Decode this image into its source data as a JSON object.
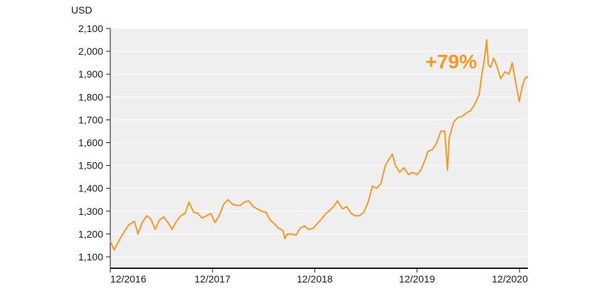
{
  "chart_data": {
    "type": "line",
    "ylabel": "USD",
    "ylim": [
      1050,
      2100
    ],
    "y_ticks": [
      "2,100",
      "2,000",
      "1,900",
      "1,800",
      "1,700",
      "1,600",
      "1,500",
      "1,400",
      "1,300",
      "1,200",
      "1,100"
    ],
    "y_tick_values": [
      2100,
      2000,
      1900,
      1800,
      1700,
      1600,
      1500,
      1400,
      1300,
      1200,
      1100
    ],
    "x_ticks": [
      "12/2016",
      "12/2017",
      "12/2018",
      "12/2019",
      "12/2020"
    ],
    "x_tick_dates": [
      "2016-12-01",
      "2017-12-01",
      "2018-12-01",
      "2019-12-01",
      "2020-12-01"
    ],
    "xlim": [
      "2016-12-01",
      "2020-12-31"
    ],
    "annotation": "+79%",
    "grid": "horizontal",
    "series": [
      {
        "color": "#f39a26",
        "x": [
          "2016-12-01",
          "2016-12-15",
          "2017-01-05",
          "2017-01-20",
          "2017-02-05",
          "2017-02-25",
          "2017-03-10",
          "2017-03-25",
          "2017-04-10",
          "2017-04-25",
          "2017-05-10",
          "2017-05-25",
          "2017-06-10",
          "2017-06-25",
          "2017-07-10",
          "2017-07-25",
          "2017-08-10",
          "2017-08-25",
          "2017-09-08",
          "2017-09-25",
          "2017-10-10",
          "2017-10-25",
          "2017-11-10",
          "2017-11-25",
          "2017-12-10",
          "2017-12-25",
          "2018-01-10",
          "2018-01-25",
          "2018-02-10",
          "2018-02-25",
          "2018-03-10",
          "2018-03-25",
          "2018-04-10",
          "2018-04-25",
          "2018-05-10",
          "2018-05-25",
          "2018-06-10",
          "2018-06-25",
          "2018-07-10",
          "2018-07-25",
          "2018-08-10",
          "2018-08-16",
          "2018-08-25",
          "2018-09-10",
          "2018-09-25",
          "2018-10-10",
          "2018-10-25",
          "2018-11-10",
          "2018-11-25",
          "2018-12-10",
          "2018-12-25",
          "2019-01-10",
          "2019-01-25",
          "2019-02-10",
          "2019-02-20",
          "2019-03-10",
          "2019-03-25",
          "2019-04-10",
          "2019-04-25",
          "2019-05-10",
          "2019-05-25",
          "2019-06-10",
          "2019-06-25",
          "2019-07-10",
          "2019-07-25",
          "2019-08-10",
          "2019-08-25",
          "2019-09-04",
          "2019-09-15",
          "2019-09-30",
          "2019-10-15",
          "2019-11-01",
          "2019-11-15",
          "2019-12-01",
          "2019-12-15",
          "2020-01-01",
          "2020-01-08",
          "2020-01-25",
          "2020-02-10",
          "2020-02-24",
          "2020-03-09",
          "2020-03-19",
          "2020-03-25",
          "2020-04-10",
          "2020-04-25",
          "2020-05-10",
          "2020-05-25",
          "2020-06-10",
          "2020-06-25",
          "2020-07-10",
          "2020-07-20",
          "2020-07-28",
          "2020-08-06",
          "2020-08-12",
          "2020-08-20",
          "2020-08-31",
          "2020-09-10",
          "2020-09-25",
          "2020-10-10",
          "2020-10-25",
          "2020-11-05",
          "2020-11-15",
          "2020-11-30",
          "2020-12-10",
          "2020-12-20",
          "2020-12-31"
        ],
        "values": [
          1170,
          1130,
          1180,
          1210,
          1240,
          1255,
          1200,
          1250,
          1280,
          1265,
          1220,
          1260,
          1275,
          1250,
          1220,
          1255,
          1280,
          1290,
          1340,
          1295,
          1290,
          1270,
          1280,
          1290,
          1250,
          1280,
          1330,
          1350,
          1330,
          1325,
          1325,
          1340,
          1345,
          1320,
          1310,
          1300,
          1295,
          1260,
          1245,
          1225,
          1215,
          1180,
          1200,
          1200,
          1195,
          1225,
          1235,
          1220,
          1225,
          1245,
          1265,
          1290,
          1305,
          1325,
          1345,
          1310,
          1320,
          1290,
          1280,
          1280,
          1295,
          1340,
          1410,
          1400,
          1420,
          1500,
          1530,
          1550,
          1500,
          1470,
          1490,
          1460,
          1470,
          1460,
          1480,
          1530,
          1560,
          1570,
          1600,
          1650,
          1650,
          1480,
          1620,
          1690,
          1710,
          1715,
          1730,
          1740,
          1770,
          1810,
          1900,
          1960,
          2050,
          1940,
          1930,
          1970,
          1940,
          1880,
          1910,
          1900,
          1950,
          1880,
          1780,
          1840,
          1880,
          1890
        ]
      }
    ]
  }
}
